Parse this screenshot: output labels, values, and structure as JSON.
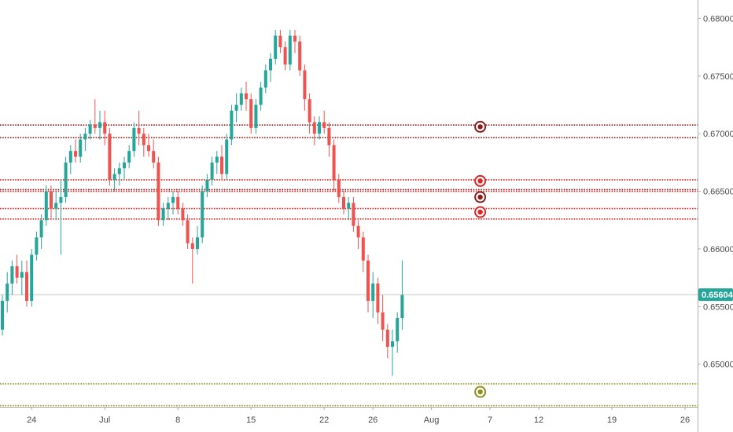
{
  "chart_data": {
    "type": "candlestick",
    "title": "",
    "xlabel": "",
    "ylabel": "",
    "ylim": [
      0.6463,
      0.6816
    ],
    "x_ticks": [
      {
        "label": "24",
        "index": 6
      },
      {
        "label": "Jul",
        "index": 21
      },
      {
        "label": "8",
        "index": 36
      },
      {
        "label": "15",
        "index": 51
      },
      {
        "label": "22",
        "index": 66
      },
      {
        "label": "26",
        "index": 76
      },
      {
        "label": "Aug",
        "index": 88
      },
      {
        "label": "7",
        "index": 100
      },
      {
        "label": "12",
        "index": 110
      },
      {
        "label": "19",
        "index": 125
      },
      {
        "label": "26",
        "index": 140
      }
    ],
    "y_ticks": [
      "0.68000",
      "0.67500",
      "0.67000",
      "0.66500",
      "0.66000",
      "0.65500",
      "0.65000"
    ],
    "y_tick_values": [
      0.68,
      0.675,
      0.67,
      0.665,
      0.66,
      0.655,
      0.65
    ],
    "current_price": {
      "value": 0.65604,
      "label": "0.65604",
      "color": "#26a69a"
    },
    "up_color": "#26a69a",
    "down_color": "#ef5350",
    "horizontal_levels": [
      {
        "value": 0.67075,
        "color": "#8b1a1a"
      },
      {
        "value": 0.66965,
        "color": "#8b1a1a"
      },
      {
        "value": 0.666,
        "color": "#e02424"
      },
      {
        "value": 0.66515,
        "color": "#8b1a1a"
      },
      {
        "value": 0.665,
        "color": "#e02424"
      },
      {
        "value": 0.6635,
        "color": "#e02424"
      },
      {
        "value": 0.6626,
        "color": "#e02424"
      },
      {
        "value": 0.6483,
        "color": "#8e8e1a"
      },
      {
        "value": 0.6464,
        "color": "#8e8e1a"
      }
    ],
    "level_markers": [
      {
        "value": 0.6706,
        "color": "#8b1a1a",
        "index": 98
      },
      {
        "value": 0.6659,
        "color": "#e02424",
        "index": 98
      },
      {
        "value": 0.6645,
        "color": "#8b1a1a",
        "index": 98
      },
      {
        "value": 0.6632,
        "color": "#e02424",
        "index": 98
      },
      {
        "value": 0.6476,
        "color": "#8e8e1a",
        "index": 98
      }
    ],
    "candles": [
      [
        0.653,
        0.656,
        0.6525,
        0.6555
      ],
      [
        0.6555,
        0.658,
        0.6545,
        0.657
      ],
      [
        0.657,
        0.659,
        0.656,
        0.6585
      ],
      [
        0.6585,
        0.6595,
        0.657,
        0.6575
      ],
      [
        0.6575,
        0.659,
        0.656,
        0.658
      ],
      [
        0.658,
        0.659,
        0.655,
        0.6555
      ],
      [
        0.6555,
        0.66,
        0.655,
        0.6595
      ],
      [
        0.6595,
        0.6615,
        0.659,
        0.661
      ],
      [
        0.661,
        0.663,
        0.66,
        0.6625
      ],
      [
        0.6625,
        0.6655,
        0.662,
        0.665
      ],
      [
        0.665,
        0.6655,
        0.6625,
        0.6635
      ],
      [
        0.6635,
        0.665,
        0.6625,
        0.664
      ],
      [
        0.664,
        0.666,
        0.6595,
        0.6645
      ],
      [
        0.6645,
        0.668,
        0.664,
        0.6675
      ],
      [
        0.6675,
        0.669,
        0.6665,
        0.6685
      ],
      [
        0.6685,
        0.6695,
        0.6675,
        0.668
      ],
      [
        0.668,
        0.67,
        0.6675,
        0.6695
      ],
      [
        0.6695,
        0.6705,
        0.6685,
        0.67
      ],
      [
        0.67,
        0.6712,
        0.6695,
        0.6708
      ],
      [
        0.6708,
        0.673,
        0.67,
        0.6705
      ],
      [
        0.6705,
        0.672,
        0.6695,
        0.671
      ],
      [
        0.671,
        0.672,
        0.669,
        0.67
      ],
      [
        0.67,
        0.6705,
        0.6655,
        0.666
      ],
      [
        0.666,
        0.667,
        0.665,
        0.6665
      ],
      [
        0.6665,
        0.6675,
        0.6655,
        0.667
      ],
      [
        0.667,
        0.668,
        0.666,
        0.6675
      ],
      [
        0.6675,
        0.669,
        0.667,
        0.6685
      ],
      [
        0.6685,
        0.671,
        0.668,
        0.6705
      ],
      [
        0.6705,
        0.672,
        0.669,
        0.67
      ],
      [
        0.67,
        0.6705,
        0.668,
        0.669
      ],
      [
        0.669,
        0.67,
        0.668,
        0.6685
      ],
      [
        0.6685,
        0.6695,
        0.667,
        0.6675
      ],
      [
        0.6675,
        0.668,
        0.662,
        0.6625
      ],
      [
        0.6625,
        0.664,
        0.662,
        0.6635
      ],
      [
        0.6635,
        0.6645,
        0.6625,
        0.664
      ],
      [
        0.664,
        0.665,
        0.663,
        0.6645
      ],
      [
        0.6645,
        0.665,
        0.663,
        0.6635
      ],
      [
        0.6635,
        0.664,
        0.662,
        0.6625
      ],
      [
        0.6625,
        0.663,
        0.66,
        0.6605
      ],
      [
        0.6605,
        0.661,
        0.657,
        0.66
      ],
      [
        0.66,
        0.662,
        0.6595,
        0.661
      ],
      [
        0.661,
        0.6655,
        0.6605,
        0.665
      ],
      [
        0.665,
        0.6665,
        0.6645,
        0.666
      ],
      [
        0.666,
        0.668,
        0.6655,
        0.6675
      ],
      [
        0.6675,
        0.6685,
        0.6665,
        0.668
      ],
      [
        0.668,
        0.669,
        0.666,
        0.6665
      ],
      [
        0.6665,
        0.67,
        0.666,
        0.6695
      ],
      [
        0.6695,
        0.6725,
        0.669,
        0.672
      ],
      [
        0.672,
        0.6735,
        0.671,
        0.6725
      ],
      [
        0.6725,
        0.674,
        0.672,
        0.6735
      ],
      [
        0.6735,
        0.6745,
        0.672,
        0.673
      ],
      [
        0.673,
        0.6735,
        0.67,
        0.6705
      ],
      [
        0.6705,
        0.673,
        0.67,
        0.6725
      ],
      [
        0.6725,
        0.6745,
        0.672,
        0.674
      ],
      [
        0.674,
        0.676,
        0.6735,
        0.6755
      ],
      [
        0.6755,
        0.677,
        0.6745,
        0.6765
      ],
      [
        0.6765,
        0.679,
        0.676,
        0.6785
      ],
      [
        0.6785,
        0.679,
        0.677,
        0.6775
      ],
      [
        0.6775,
        0.678,
        0.6755,
        0.676
      ],
      [
        0.676,
        0.679,
        0.6755,
        0.6785
      ],
      [
        0.6785,
        0.679,
        0.677,
        0.678
      ],
      [
        0.678,
        0.6785,
        0.675,
        0.6755
      ],
      [
        0.6755,
        0.676,
        0.672,
        0.673
      ],
      [
        0.673,
        0.6735,
        0.67,
        0.671
      ],
      [
        0.671,
        0.6715,
        0.669,
        0.67
      ],
      [
        0.67,
        0.6715,
        0.6695,
        0.671
      ],
      [
        0.671,
        0.672,
        0.67,
        0.6705
      ],
      [
        0.6705,
        0.671,
        0.668,
        0.669
      ],
      [
        0.669,
        0.6695,
        0.665,
        0.666
      ],
      [
        0.666,
        0.6665,
        0.664,
        0.6645
      ],
      [
        0.6645,
        0.665,
        0.663,
        0.6635
      ],
      [
        0.6635,
        0.6645,
        0.6625,
        0.664
      ],
      [
        0.664,
        0.6645,
        0.6615,
        0.662
      ],
      [
        0.662,
        0.6625,
        0.66,
        0.661
      ],
      [
        0.661,
        0.6615,
        0.658,
        0.659
      ],
      [
        0.659,
        0.6595,
        0.6545,
        0.6555
      ],
      [
        0.6555,
        0.658,
        0.654,
        0.657
      ],
      [
        0.657,
        0.6575,
        0.6535,
        0.6545
      ],
      [
        0.6545,
        0.656,
        0.652,
        0.653
      ],
      [
        0.653,
        0.6535,
        0.6505,
        0.6515
      ],
      [
        0.6515,
        0.653,
        0.649,
        0.652
      ],
      [
        0.652,
        0.6545,
        0.651,
        0.654
      ],
      [
        0.654,
        0.659,
        0.653,
        0.656
      ]
    ]
  }
}
